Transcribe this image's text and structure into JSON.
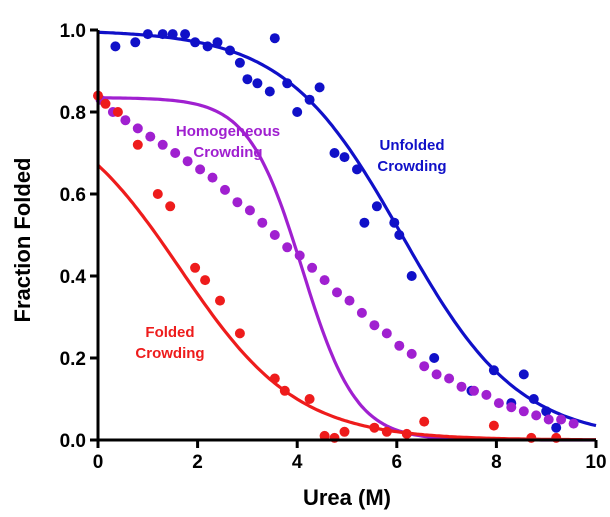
{
  "chart_data": {
    "type": "scatter",
    "xlabel": "Urea (M)",
    "ylabel": "Fraction Folded",
    "xlim": [
      0,
      10
    ],
    "ylim": [
      0,
      1.0
    ],
    "x_ticks": [
      "0",
      "2",
      "4",
      "6",
      "8",
      "10"
    ],
    "y_ticks": [
      "0.0",
      "0.2",
      "0.4",
      "0.6",
      "0.8",
      "1.0"
    ],
    "grid": false,
    "legend": "none; series labeled inline",
    "series": [
      {
        "name": "Unfolded Crowding",
        "label_lines": [
          "Unfolded",
          "Crowding"
        ],
        "color": "#1010c8",
        "fit": {
          "model": "sigmoid",
          "top": 1.0,
          "bottom": 0.0,
          "midpoint": 6.1,
          "slope": 0.85
        },
        "points": [
          [
            0.35,
            0.96
          ],
          [
            0.75,
            0.97
          ],
          [
            1.0,
            0.99
          ],
          [
            1.3,
            0.99
          ],
          [
            1.5,
            0.99
          ],
          [
            1.75,
            0.99
          ],
          [
            1.95,
            0.97
          ],
          [
            2.2,
            0.96
          ],
          [
            2.4,
            0.97
          ],
          [
            2.65,
            0.95
          ],
          [
            2.85,
            0.92
          ],
          [
            3.0,
            0.88
          ],
          [
            3.2,
            0.87
          ],
          [
            3.45,
            0.85
          ],
          [
            3.55,
            0.98
          ],
          [
            3.8,
            0.87
          ],
          [
            4.0,
            0.8
          ],
          [
            4.25,
            0.83
          ],
          [
            4.45,
            0.86
          ],
          [
            4.75,
            0.7
          ],
          [
            4.95,
            0.69
          ],
          [
            5.2,
            0.66
          ],
          [
            5.35,
            0.53
          ],
          [
            5.6,
            0.57
          ],
          [
            5.95,
            0.53
          ],
          [
            6.05,
            0.5
          ],
          [
            6.3,
            0.4
          ],
          [
            6.75,
            0.2
          ],
          [
            7.5,
            0.12
          ],
          [
            7.95,
            0.17
          ],
          [
            8.3,
            0.09
          ],
          [
            8.55,
            0.16
          ],
          [
            8.75,
            0.1
          ],
          [
            9.0,
            0.07
          ],
          [
            9.2,
            0.03
          ]
        ]
      },
      {
        "name": "Homogeneous Crowding",
        "label_lines": [
          "Homogeneous",
          "Crowding"
        ],
        "color": "#a020d0",
        "fit": {
          "model": "sigmoid",
          "top": 0.835,
          "bottom": 0.0,
          "midpoint": 4.1,
          "slope": 1.85
        },
        "points": [
          [
            0.05,
            0.83
          ],
          [
            0.3,
            0.8
          ],
          [
            0.55,
            0.78
          ],
          [
            0.8,
            0.76
          ],
          [
            1.05,
            0.74
          ],
          [
            1.3,
            0.72
          ],
          [
            1.55,
            0.7
          ],
          [
            1.8,
            0.68
          ],
          [
            2.05,
            0.66
          ],
          [
            2.3,
            0.64
          ],
          [
            2.55,
            0.61
          ],
          [
            2.8,
            0.58
          ],
          [
            3.05,
            0.56
          ],
          [
            3.3,
            0.53
          ],
          [
            3.55,
            0.5
          ],
          [
            3.8,
            0.47
          ],
          [
            4.05,
            0.45
          ],
          [
            4.3,
            0.42
          ],
          [
            4.55,
            0.39
          ],
          [
            4.8,
            0.36
          ],
          [
            5.05,
            0.34
          ],
          [
            5.3,
            0.31
          ],
          [
            5.55,
            0.28
          ],
          [
            5.8,
            0.26
          ],
          [
            6.05,
            0.23
          ],
          [
            6.3,
            0.21
          ],
          [
            6.55,
            0.18
          ],
          [
            6.8,
            0.16
          ],
          [
            7.05,
            0.15
          ],
          [
            7.3,
            0.13
          ],
          [
            7.55,
            0.12
          ],
          [
            7.8,
            0.11
          ],
          [
            8.05,
            0.09
          ],
          [
            8.3,
            0.08
          ],
          [
            8.55,
            0.07
          ],
          [
            8.8,
            0.06
          ],
          [
            9.05,
            0.05
          ],
          [
            9.3,
            0.05
          ],
          [
            9.55,
            0.04
          ]
        ]
      },
      {
        "name": "Folded Crowding",
        "label_lines": [
          "Folded",
          "Crowding"
        ],
        "color": "#ee1c1c",
        "fit": {
          "model": "sigmoid",
          "top": 0.835,
          "bottom": 0.0,
          "midpoint": 1.65,
          "slope": 0.85
        },
        "points": [
          [
            0.0,
            0.84
          ],
          [
            0.15,
            0.82
          ],
          [
            0.4,
            0.8
          ],
          [
            0.8,
            0.72
          ],
          [
            1.2,
            0.6
          ],
          [
            1.45,
            0.57
          ],
          [
            1.95,
            0.42
          ],
          [
            2.15,
            0.39
          ],
          [
            2.45,
            0.34
          ],
          [
            2.85,
            0.26
          ],
          [
            3.55,
            0.15
          ],
          [
            3.75,
            0.12
          ],
          [
            4.25,
            0.1
          ],
          [
            4.55,
            0.01
          ],
          [
            4.75,
            0.005
          ],
          [
            4.95,
            0.02
          ],
          [
            5.55,
            0.03
          ],
          [
            5.8,
            0.02
          ],
          [
            6.2,
            0.015
          ],
          [
            6.55,
            0.045
          ],
          [
            7.95,
            0.035
          ],
          [
            8.7,
            0.005
          ],
          [
            9.2,
            0.005
          ]
        ]
      }
    ]
  }
}
